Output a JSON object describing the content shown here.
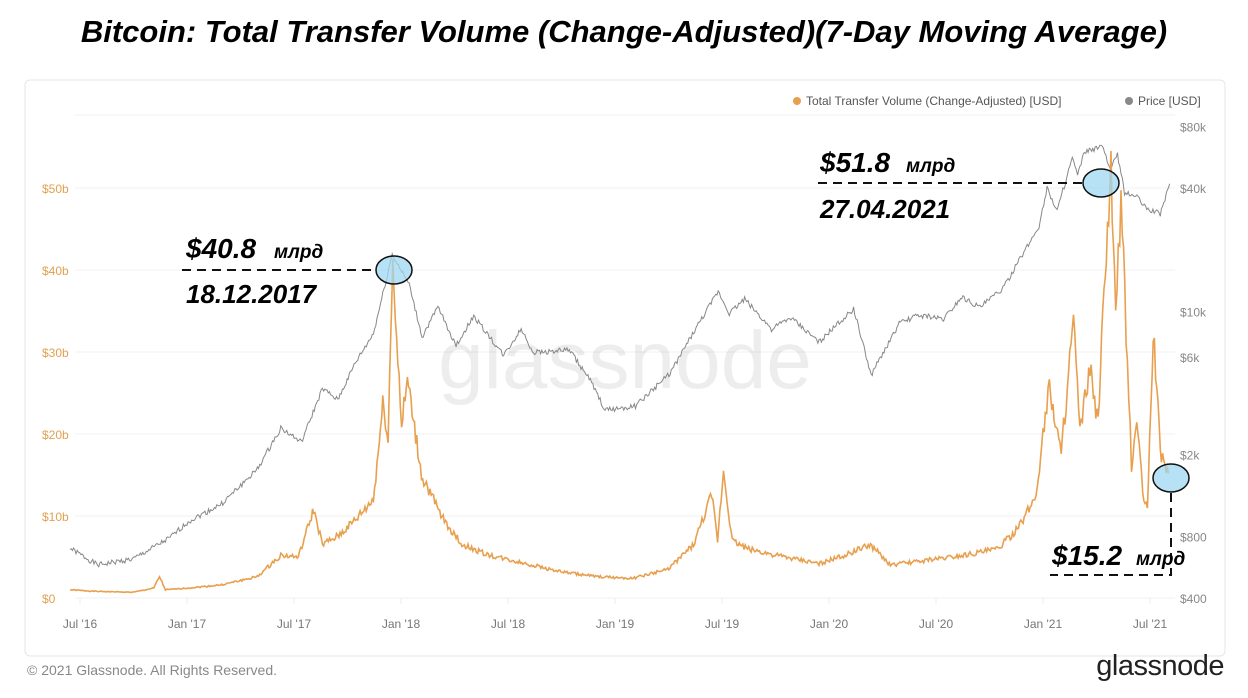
{
  "chart_data": {
    "type": "line",
    "title": "Bitcoin: Total Transfer Volume (Change-Adjusted)(7-Day Moving Average)",
    "x_ticks": [
      "Jul '16",
      "Jan '17",
      "Jul '17",
      "Jan '18",
      "Jul '18",
      "Jan '19",
      "Jul '19",
      "Jan '20",
      "Jul '20",
      "Jan '21",
      "Jul '21"
    ],
    "y_left_ticks": [
      "$0",
      "$10b",
      "$20b",
      "$30b",
      "$40b",
      "$50b"
    ],
    "y_left_range_billion_usd": [
      0,
      57
    ],
    "y_right_ticks": [
      "$400",
      "$800",
      "$2k",
      "$6k",
      "$10k",
      "$40k",
      "$80k"
    ],
    "y_right_tick_values": [
      400,
      800,
      2000,
      6000,
      10000,
      40000,
      80000
    ],
    "y_right_scale": "log",
    "legend_position": "top-right",
    "grid": true,
    "series": [
      {
        "name": "Total Transfer Volume (Change-Adjusted) [USD]",
        "color": "#e8a04e",
        "axis": "left",
        "unit": "billion USD",
        "points": [
          [
            "2016-06-15",
            1.0
          ],
          [
            "2016-08-01",
            0.8
          ],
          [
            "2016-10-01",
            0.7
          ],
          [
            "2016-11-05",
            1.2
          ],
          [
            "2016-11-15",
            2.6
          ],
          [
            "2016-11-25",
            1.0
          ],
          [
            "2017-01-01",
            1.2
          ],
          [
            "2017-03-01",
            1.6
          ],
          [
            "2017-05-01",
            2.6
          ],
          [
            "2017-06-10",
            5.2
          ],
          [
            "2017-07-10",
            5.0
          ],
          [
            "2017-08-05",
            10.8
          ],
          [
            "2017-08-20",
            6.5
          ],
          [
            "2017-09-15",
            7.5
          ],
          [
            "2017-10-15",
            9.5
          ],
          [
            "2017-11-15",
            12
          ],
          [
            "2017-12-01",
            23.5
          ],
          [
            "2017-12-10",
            20
          ],
          [
            "2017-12-18",
            40.8
          ],
          [
            "2018-01-02",
            21
          ],
          [
            "2018-01-12",
            26.5
          ],
          [
            "2018-02-05",
            15
          ],
          [
            "2018-03-10",
            10
          ],
          [
            "2018-04-15",
            6.5
          ],
          [
            "2018-06-01",
            5.2
          ],
          [
            "2018-08-01",
            4.2
          ],
          [
            "2018-10-01",
            3.2
          ],
          [
            "2018-12-01",
            2.6
          ],
          [
            "2019-02-01",
            2.4
          ],
          [
            "2019-04-01",
            3.5
          ],
          [
            "2019-05-15",
            6.5
          ],
          [
            "2019-06-15",
            12.5
          ],
          [
            "2019-06-25",
            7
          ],
          [
            "2019-07-05",
            15.6
          ],
          [
            "2019-07-20",
            7
          ],
          [
            "2019-08-15",
            6
          ],
          [
            "2019-10-15",
            5
          ],
          [
            "2019-12-15",
            4.2
          ],
          [
            "2020-01-20",
            5
          ],
          [
            "2020-03-12",
            6.5
          ],
          [
            "2020-04-15",
            4
          ],
          [
            "2020-06-15",
            4.6
          ],
          [
            "2020-08-15",
            5.2
          ],
          [
            "2020-10-15",
            6
          ],
          [
            "2020-11-20",
            8.5
          ],
          [
            "2020-12-20",
            12.5
          ],
          [
            "2021-01-05",
            22.5
          ],
          [
            "2021-01-12",
            25.8
          ],
          [
            "2021-02-01",
            17.5
          ],
          [
            "2021-02-22",
            34
          ],
          [
            "2021-03-05",
            20
          ],
          [
            "2021-03-22",
            28
          ],
          [
            "2021-04-05",
            21
          ],
          [
            "2021-04-17",
            40
          ],
          [
            "2021-04-27",
            51.8
          ],
          [
            "2021-05-05",
            34
          ],
          [
            "2021-05-14",
            48
          ],
          [
            "2021-05-25",
            29
          ],
          [
            "2021-06-01",
            16
          ],
          [
            "2021-06-10",
            22
          ],
          [
            "2021-06-20",
            13
          ],
          [
            "2021-06-28",
            10.5
          ],
          [
            "2021-07-08",
            33
          ],
          [
            "2021-07-20",
            18
          ],
          [
            "2021-08-03",
            15.2
          ]
        ]
      },
      {
        "name": "Price [USD]",
        "color": "#888888",
        "axis": "right",
        "unit": "USD",
        "points": [
          [
            "2016-06-15",
            700
          ],
          [
            "2016-08-01",
            580
          ],
          [
            "2016-10-01",
            620
          ],
          [
            "2016-12-01",
            780
          ],
          [
            "2017-01-05",
            950
          ],
          [
            "2017-03-01",
            1150
          ],
          [
            "2017-05-01",
            1700
          ],
          [
            "2017-06-10",
            2700
          ],
          [
            "2017-07-15",
            2300
          ],
          [
            "2017-08-20",
            4200
          ],
          [
            "2017-09-15",
            3700
          ],
          [
            "2017-10-15",
            5600
          ],
          [
            "2017-11-15",
            7800
          ],
          [
            "2017-12-17",
            19000
          ],
          [
            "2018-01-15",
            13500
          ],
          [
            "2018-02-06",
            7500
          ],
          [
            "2018-03-05",
            10500
          ],
          [
            "2018-04-05",
            6800
          ],
          [
            "2018-05-05",
            9500
          ],
          [
            "2018-06-25",
            6100
          ],
          [
            "2018-07-25",
            8200
          ],
          [
            "2018-08-15",
            6300
          ],
          [
            "2018-10-15",
            6500
          ],
          [
            "2018-11-20",
            4600
          ],
          [
            "2018-12-15",
            3300
          ],
          [
            "2019-02-05",
            3450
          ],
          [
            "2019-04-05",
            5000
          ],
          [
            "2019-05-15",
            7900
          ],
          [
            "2019-06-26",
            12500
          ],
          [
            "2019-07-15",
            9800
          ],
          [
            "2019-08-10",
            11500
          ],
          [
            "2019-09-25",
            8200
          ],
          [
            "2019-10-28",
            9300
          ],
          [
            "2019-12-15",
            7100
          ],
          [
            "2020-02-12",
            10300
          ],
          [
            "2020-03-13",
            4900
          ],
          [
            "2020-04-30",
            8700
          ],
          [
            "2020-06-01",
            9600
          ],
          [
            "2020-07-15",
            9200
          ],
          [
            "2020-08-15",
            11800
          ],
          [
            "2020-09-15",
            10500
          ],
          [
            "2020-10-25",
            13000
          ],
          [
            "2020-11-25",
            18500
          ],
          [
            "2020-12-25",
            26000
          ],
          [
            "2021-01-08",
            40000
          ],
          [
            "2021-01-25",
            31000
          ],
          [
            "2021-02-20",
            56000
          ],
          [
            "2021-03-01",
            46000
          ],
          [
            "2021-03-13",
            60000
          ],
          [
            "2021-04-14",
            63500
          ],
          [
            "2021-04-25",
            49000
          ],
          [
            "2021-05-08",
            58000
          ],
          [
            "2021-05-20",
            38000
          ],
          [
            "2021-06-10",
            36500
          ],
          [
            "2021-06-25",
            32000
          ],
          [
            "2021-07-20",
            30000
          ],
          [
            "2021-08-05",
            42000
          ]
        ]
      }
    ],
    "annotations": [
      {
        "value": "$40.8",
        "unit": "млрд",
        "date": "18.12.2017"
      },
      {
        "value": "$51.8",
        "unit": "млрд",
        "date": "27.04.2021"
      },
      {
        "value": "$15.2",
        "unit": "млрд"
      }
    ]
  },
  "watermark": "glassnode",
  "footer": {
    "copyright": "© 2021 Glassnode. All Rights Reserved.",
    "logo": "glassnode"
  }
}
